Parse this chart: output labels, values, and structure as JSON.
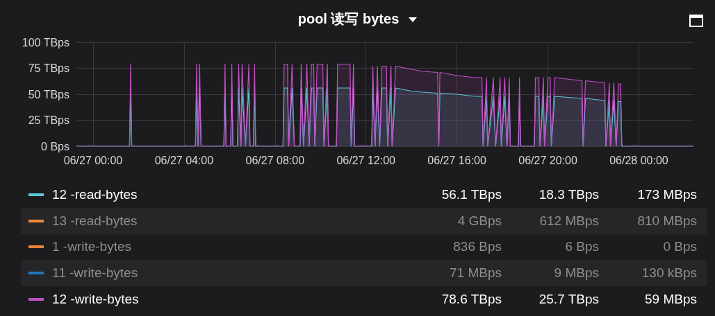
{
  "chart_data": {
    "type": "area",
    "title": "pool 读写 bytes",
    "x": [
      "--06-26T23:16",
      "--06-27T01:36",
      "--06-27T01:39",
      "--06-27T01:42",
      "--06-27T04:30",
      "--06-27T04:33",
      "--06-27T04:37",
      "--06-27T04:41",
      "--06-27T04:45",
      "--06-27T05:45",
      "--06-27T05:48",
      "--06-27T05:51",
      "--06-27T06:03",
      "--06-27T06:06",
      "--06-27T06:09",
      "--06-27T06:21",
      "--06-27T06:24",
      "--06-27T06:30",
      "--06-27T06:33",
      "--06-27T06:42",
      "--06-27T06:51",
      "--06-27T06:54",
      "--06-27T07:03",
      "--06-27T07:06",
      "--06-27T07:09",
      "--06-27T08:21",
      "--06-27T08:24",
      "--06-27T08:33",
      "--06-27T08:36",
      "--06-27T08:45",
      "--06-27T08:51",
      "--06-27T09:06",
      "--06-27T09:09",
      "--06-27T09:15",
      "--06-27T09:24",
      "--06-27T09:30",
      "--06-27T09:36",
      "--06-27T09:42",
      "--06-27T09:45",
      "--06-27T09:51",
      "--06-27T10:06",
      "--06-27T10:09",
      "--06-27T10:18",
      "--06-27T10:21",
      "--06-27T10:42",
      "--06-27T10:45",
      "--06-27T11:18",
      "--06-27T11:21",
      "--06-27T11:27",
      "--06-27T11:30",
      "--06-27T12:15",
      "--06-27T12:18",
      "--06-27T12:24",
      "--06-27T12:30",
      "--06-27T12:36",
      "--06-27T12:42",
      "--06-27T12:54",
      "--06-27T12:57",
      "--06-27T13:06",
      "--06-27T13:09",
      "--06-27T13:18",
      "--06-27T14:00",
      "--06-27T14:30",
      "--06-27T15:09",
      "--06-27T15:12",
      "--06-27T15:15",
      "--06-27T16:00",
      "--06-27T16:48",
      "--06-27T17:06",
      "--06-27T17:09",
      "--06-27T17:18",
      "--06-27T17:21",
      "--06-27T17:36",
      "--06-27T17:42",
      "--06-27T17:54",
      "--06-27T17:57",
      "--06-27T18:06",
      "--06-27T18:12",
      "--06-27T18:18",
      "--06-27T18:21",
      "--06-27T18:42",
      "--06-27T18:45",
      "--06-27T18:48",
      "--06-27T19:24",
      "--06-27T19:27",
      "--06-27T19:36",
      "--06-27T19:39",
      "--06-27T19:48",
      "--06-27T19:51",
      "--06-27T20:00",
      "--06-27T20:06",
      "--06-27T20:09",
      "--06-27T20:18",
      "--06-27T21:30",
      "--06-27T21:33",
      "--06-27T21:39",
      "--06-27T22:30",
      "--06-27T22:33",
      "--06-27T22:42",
      "--06-27T22:45",
      "--06-27T22:54",
      "--06-27T23:00",
      "--06-27T23:06",
      "--06-27T23:12",
      "--06-27T23:15",
      "--06-28T02:24"
    ],
    "series": [
      {
        "name": "12 -read-bytes",
        "color": "#5bc8d8",
        "values": [
          0,
          0,
          56,
          0,
          0,
          56,
          0,
          56,
          0,
          0,
          56,
          0,
          0,
          56,
          0,
          0,
          56,
          0,
          56,
          0,
          56,
          0,
          0,
          56,
          0,
          0,
          56,
          56,
          0,
          56,
          0,
          0,
          56,
          0,
          56,
          0,
          56,
          56,
          0,
          56,
          56,
          0,
          56,
          0,
          0,
          56,
          56,
          0,
          56,
          0,
          0,
          56,
          0,
          56,
          0,
          56,
          56,
          0,
          56,
          0,
          56,
          53,
          52,
          51,
          0,
          51,
          50,
          48,
          48,
          0,
          48,
          0,
          48,
          0,
          48,
          0,
          48,
          0,
          48,
          0,
          0,
          48,
          0,
          0,
          48,
          48,
          0,
          48,
          0,
          48,
          48,
          0,
          48,
          46,
          0,
          46,
          44,
          0,
          44,
          0,
          44,
          0,
          43,
          43,
          0,
          0
        ]
      },
      {
        "name": "13 -read-bytes",
        "color": "#f2883a",
        "values": [
          null,
          null,
          null,
          null,
          null,
          null,
          null,
          null,
          null,
          null,
          null,
          null,
          null,
          null,
          null,
          null,
          null,
          null,
          null,
          null,
          null,
          null,
          null,
          null,
          null,
          null,
          null,
          null,
          null,
          null,
          null,
          null,
          null,
          null,
          null,
          null,
          null,
          null,
          null,
          null,
          null,
          null,
          null,
          null,
          null,
          null,
          null,
          null,
          null,
          null,
          null,
          null,
          null,
          null,
          null,
          null,
          null,
          null,
          null,
          null,
          null,
          null,
          null,
          null,
          null,
          null,
          null,
          null,
          null,
          null,
          null,
          null,
          null,
          null,
          null,
          null,
          null,
          null,
          null,
          null,
          null,
          null,
          null,
          null,
          null,
          null,
          null,
          null,
          null,
          null,
          null,
          null,
          null,
          null,
          null,
          null,
          null,
          null,
          null,
          null,
          null,
          null,
          null,
          null,
          null,
          null
        ]
      },
      {
        "name": "1 -write-bytes",
        "color": "#e8803a",
        "values": [
          null,
          null,
          null,
          null,
          null,
          null,
          null,
          null,
          null,
          null,
          null,
          null,
          null,
          null,
          null,
          null,
          null,
          null,
          null,
          null,
          null,
          null,
          null,
          null,
          null,
          null,
          null,
          null,
          null,
          null,
          null,
          null,
          null,
          null,
          null,
          null,
          null,
          null,
          null,
          null,
          null,
          null,
          null,
          null,
          null,
          null,
          null,
          null,
          null,
          null,
          null,
          null,
          null,
          null,
          null,
          null,
          null,
          null,
          null,
          null,
          null,
          null,
          null,
          null,
          null,
          null,
          null,
          null,
          null,
          null,
          null,
          null,
          null,
          null,
          null,
          null,
          null,
          null,
          null,
          null,
          null,
          null,
          null,
          null,
          null,
          null,
          null,
          null,
          null,
          null,
          null,
          null,
          null,
          null,
          null,
          null,
          null,
          null,
          null,
          null,
          null,
          null,
          null,
          null,
          null,
          null
        ]
      },
      {
        "name": "11 -write-bytes",
        "color": "#1f78c1",
        "values": [
          null,
          null,
          null,
          null,
          null,
          null,
          null,
          null,
          null,
          null,
          null,
          null,
          null,
          null,
          null,
          null,
          null,
          null,
          null,
          null,
          null,
          null,
          null,
          null,
          null,
          null,
          null,
          null,
          null,
          null,
          null,
          null,
          null,
          null,
          null,
          null,
          null,
          null,
          null,
          null,
          null,
          null,
          null,
          null,
          null,
          null,
          null,
          null,
          null,
          null,
          null,
          null,
          null,
          null,
          null,
          null,
          null,
          null,
          null,
          null,
          null,
          null,
          null,
          null,
          null,
          null,
          null,
          null,
          null,
          null,
          null,
          null,
          null,
          null,
          null,
          null,
          null,
          null,
          null,
          null,
          null,
          null,
          null,
          null,
          null,
          null,
          null,
          null,
          null,
          null,
          null,
          null,
          null,
          null,
          null,
          null,
          null,
          null,
          null,
          null,
          null,
          null,
          null,
          null,
          null,
          null
        ]
      },
      {
        "name": "12 -write-bytes",
        "color": "#c24fc4",
        "values": [
          0,
          0,
          79,
          0,
          0,
          79,
          0,
          79,
          0,
          0,
          79,
          0,
          0,
          79,
          0,
          0,
          79,
          0,
          79,
          0,
          79,
          0,
          0,
          79,
          0,
          0,
          79,
          79,
          0,
          79,
          0,
          0,
          79,
          0,
          79,
          0,
          79,
          79,
          0,
          79,
          79,
          0,
          79,
          0,
          0,
          79,
          79,
          0,
          79,
          0,
          0,
          77,
          0,
          77,
          0,
          77,
          77,
          0,
          77,
          0,
          77,
          74,
          72,
          71,
          0,
          71,
          68,
          66,
          66,
          0,
          66,
          0,
          66,
          0,
          66,
          0,
          66,
          0,
          66,
          0,
          0,
          66,
          0,
          0,
          66,
          66,
          0,
          66,
          0,
          66,
          66,
          0,
          66,
          63,
          0,
          63,
          61,
          0,
          61,
          0,
          61,
          0,
          60,
          60,
          0,
          0
        ]
      }
    ],
    "xlim": [
      "--06-26T23:16",
      "--06-28T02:24"
    ],
    "xticks": [
      {
        "value": "--06-27T00:00",
        "label": "06/27 00:00"
      },
      {
        "value": "--06-27T04:00",
        "label": "06/27 04:00"
      },
      {
        "value": "--06-27T08:00",
        "label": "06/27 08:00"
      },
      {
        "value": "--06-27T12:00",
        "label": "06/27 12:00"
      },
      {
        "value": "--06-27T16:00",
        "label": "06/27 16:00"
      },
      {
        "value": "--06-27T20:00",
        "label": "06/27 20:00"
      },
      {
        "value": "--06-28T00:00",
        "label": "06/28 00:00"
      }
    ],
    "ylim": [
      0,
      100
    ],
    "yticks": [
      {
        "value": 0,
        "label": "0 Bps"
      },
      {
        "value": 25,
        "label": "25 TBps"
      },
      {
        "value": 50,
        "label": "50 TBps"
      },
      {
        "value": 75,
        "label": "75 TBps"
      },
      {
        "value": 100,
        "label": "100 TBps"
      }
    ],
    "grid": true,
    "legend": "bottom",
    "annotations": [
      "56.1 TBps",
      "18.3 TBps",
      "173 MBps",
      "4 GBps",
      "612 MBps",
      "810 MBps",
      "836 Bps",
      "6 Bps",
      "0 Bps",
      "71 MBps",
      "9 MBps",
      "130 kBps",
      "78.6 TBps",
      "25.7 TBps",
      "59 MBps"
    ]
  }
}
